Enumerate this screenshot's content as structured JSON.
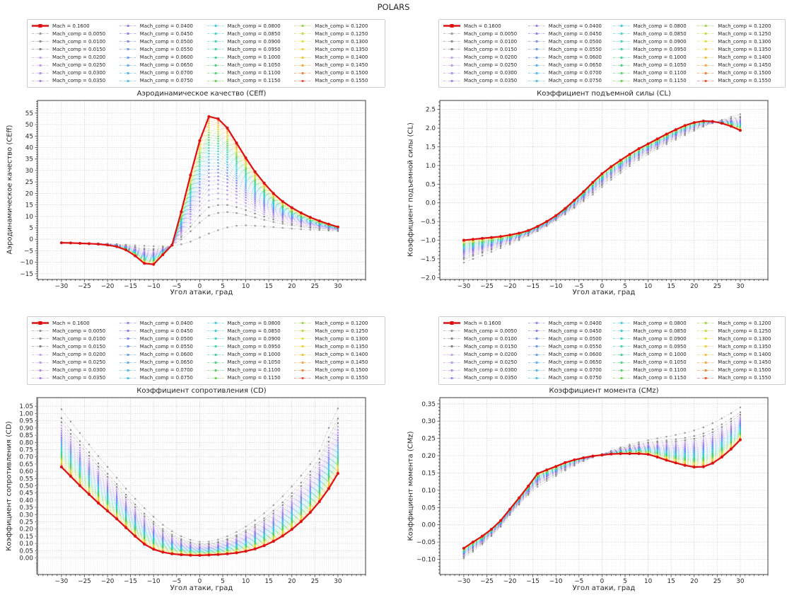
{
  "figure_title": "POLARS",
  "legend": {
    "highlight_label": "Mach = 0.1600",
    "comp_labels": [
      "Mach_comp = 0.0050",
      "Mach_comp = 0.0100",
      "Mach_comp = 0.0150",
      "Mach_comp = 0.0200",
      "Mach_comp = 0.0250",
      "Mach_comp = 0.0300",
      "Mach_comp = 0.0350",
      "Mach_comp = 0.0400",
      "Mach_comp = 0.0450",
      "Mach_comp = 0.0500",
      "Mach_comp = 0.0550",
      "Mach_comp = 0.0600",
      "Mach_comp = 0.0650",
      "Mach_comp = 0.0700",
      "Mach_comp = 0.0750",
      "Mach_comp = 0.0800",
      "Mach_comp = 0.0850",
      "Mach_comp = 0.0900",
      "Mach_comp = 0.0950",
      "Mach_comp = 0.1000",
      "Mach_comp = 0.1050",
      "Mach_comp = 0.1100",
      "Mach_comp = 0.1150",
      "Mach_comp = 0.1200",
      "Mach_comp = 0.1250",
      "Mach_comp = 0.1300",
      "Mach_comp = 0.1350",
      "Mach_comp = 0.1400",
      "Mach_comp = 0.1450",
      "Mach_comp = 0.1500",
      "Mach_comp = 0.1550"
    ]
  },
  "chart_data": {
    "type": "line",
    "x_label": "Угол атаки, град",
    "x": [
      -30,
      -28,
      -26,
      -24,
      -22,
      -20,
      -18,
      -16,
      -14,
      -12,
      -10,
      -8,
      -6,
      -4,
      -2,
      0,
      2,
      4,
      6,
      8,
      10,
      12,
      14,
      16,
      18,
      20,
      22,
      24,
      26,
      28,
      30
    ],
    "xlim": [
      -35.2,
      36.0
    ],
    "xticks": {
      "min": -30,
      "max": 30,
      "step": 5,
      "minor_step": 1
    },
    "grid": "major and minor, dotted light grey",
    "legend_position": "above each subplot, 4 columns x 8 rows",
    "panels": [
      {
        "key": "CEff",
        "title": "Аэродинамическое качество (CEff)",
        "ylabel": "Аэродинамическое качество (CEff)",
        "ylim": [
          -17.5,
          60.5
        ],
        "yticks": {
          "min": -15,
          "max": 55,
          "step": 5,
          "minor_step": 1,
          "decimals": 0
        },
        "highlight_values": [
          -1.5,
          -1.6,
          -1.75,
          -1.9,
          -2.1,
          -2.5,
          -3.2,
          -4.6,
          -7.2,
          -10.5,
          -10.9,
          -6.7,
          -2.5,
          12,
          28,
          43,
          53.5,
          52.5,
          48.5,
          42,
          35.5,
          29.5,
          24.5,
          20,
          16.5,
          13.8,
          11.5,
          9.6,
          8,
          6.6,
          5.4
        ],
        "base_values": [
          -1.5,
          -1.55,
          -1.6,
          -1.65,
          -1.75,
          -1.9,
          -2.1,
          -2.35,
          -2.6,
          -2.85,
          -3.0,
          -3.05,
          -2.8,
          -2.2,
          -1.0,
          0.8,
          2.5,
          4.0,
          5.2,
          5.9,
          6.1,
          5.9,
          5.6,
          5.3,
          5.0,
          4.7,
          4.4,
          4.2,
          4.0,
          3.8,
          3.6
        ]
      },
      {
        "key": "CL",
        "title": "Коэффициент подъемной силы (CL)",
        "ylabel": "Коэффициент подъемной силы (CL)",
        "ylim": [
          -2.05,
          2.74
        ],
        "yticks": {
          "min": -2.0,
          "max": 2.5,
          "step": 0.5,
          "minor_step": 0.1,
          "decimals": 1
        },
        "highlight_values": [
          -1.0,
          -0.975,
          -0.95,
          -0.925,
          -0.9,
          -0.86,
          -0.81,
          -0.74,
          -0.63,
          -0.5,
          -0.34,
          -0.15,
          0.07,
          0.3,
          0.55,
          0.78,
          0.97,
          1.14,
          1.3,
          1.45,
          1.58,
          1.71,
          1.84,
          1.96,
          2.07,
          2.15,
          2.19,
          2.18,
          2.13,
          2.05,
          1.94
        ],
        "base_values": [
          -1.6,
          -1.5,
          -1.41,
          -1.31,
          -1.21,
          -1.11,
          -1.0,
          -0.88,
          -0.76,
          -0.62,
          -0.47,
          -0.31,
          -0.14,
          0.04,
          0.22,
          0.42,
          0.62,
          0.8,
          0.98,
          1.15,
          1.3,
          1.44,
          1.57,
          1.69,
          1.81,
          1.93,
          2.04,
          2.13,
          2.22,
          2.3,
          2.37
        ]
      },
      {
        "key": "CD",
        "title": "Коэффициент сопротивления (CD)",
        "ylabel": "Коэффициент сопротивления (CD)",
        "ylim": [
          -0.115,
          1.11
        ],
        "yticks": {
          "min": 0.0,
          "max": 1.05,
          "step": 0.05,
          "minor_step": 0.01,
          "decimals": 2
        },
        "highlight_values": [
          0.63,
          0.565,
          0.5,
          0.44,
          0.38,
          0.325,
          0.27,
          0.21,
          0.15,
          0.095,
          0.06,
          0.04,
          0.028,
          0.022,
          0.019,
          0.018,
          0.02,
          0.023,
          0.028,
          0.035,
          0.046,
          0.062,
          0.085,
          0.115,
          0.152,
          0.197,
          0.252,
          0.315,
          0.39,
          0.48,
          0.585
        ],
        "base_values": [
          1.03,
          0.945,
          0.865,
          0.785,
          0.705,
          0.63,
          0.555,
          0.48,
          0.41,
          0.345,
          0.285,
          0.23,
          0.185,
          0.15,
          0.125,
          0.112,
          0.113,
          0.127,
          0.15,
          0.18,
          0.217,
          0.26,
          0.31,
          0.365,
          0.427,
          0.495,
          0.57,
          0.65,
          0.74,
          0.9,
          1.035
        ]
      },
      {
        "key": "CMz",
        "title": "Коэффициент момента (CMz)",
        "ylabel": "Коэффициент момента (CMz)",
        "ylim": [
          -0.144,
          0.368
        ],
        "yticks": {
          "min": -0.1,
          "max": 0.35,
          "step": 0.05,
          "minor_step": 0.01,
          "decimals": 2
        },
        "highlight_values": [
          -0.068,
          -0.05,
          -0.033,
          -0.013,
          0.012,
          0.045,
          0.078,
          0.112,
          0.148,
          0.159,
          0.169,
          0.18,
          0.188,
          0.194,
          0.199,
          0.202,
          0.205,
          0.206,
          0.206,
          0.206,
          0.204,
          0.196,
          0.187,
          0.179,
          0.172,
          0.167,
          0.168,
          0.178,
          0.196,
          0.219,
          0.246
        ],
        "base_values": [
          -0.097,
          -0.078,
          -0.057,
          -0.033,
          -0.006,
          0.028,
          0.058,
          0.086,
          0.11,
          0.127,
          0.141,
          0.157,
          0.171,
          0.184,
          0.195,
          0.205,
          0.214,
          0.224,
          0.232,
          0.239,
          0.245,
          0.25,
          0.255,
          0.26,
          0.266,
          0.273,
          0.282,
          0.294,
          0.308,
          0.323,
          0.34
        ]
      }
    ],
    "reconstruction": {
      "comp_series_rule": "series i (i=0..30, Mach_comp=0.0050..0.1550) = base + (highlight-base)*pow(i/30, 0.55)",
      "interp_exponent": 0.55,
      "highlight_color": "#dd1111",
      "grey_colors": [
        "#8c8c8c",
        "#7f7f7f",
        "#737373"
      ],
      "colormap_stops": [
        [
          0.0,
          "#bb99e0"
        ],
        [
          0.1,
          "#9f7ae2"
        ],
        [
          0.18,
          "#7f72e6"
        ],
        [
          0.27,
          "#5e8ce9"
        ],
        [
          0.36,
          "#47abe9"
        ],
        [
          0.45,
          "#35c6da"
        ],
        [
          0.53,
          "#2fcfae"
        ],
        [
          0.62,
          "#3bcb74"
        ],
        [
          0.7,
          "#57cb45"
        ],
        [
          0.76,
          "#a8d838"
        ],
        [
          0.82,
          "#dcdc30"
        ],
        [
          0.88,
          "#f0c02e"
        ],
        [
          0.94,
          "#f2912a"
        ],
        [
          1.0,
          "#e84426"
        ]
      ]
    }
  }
}
